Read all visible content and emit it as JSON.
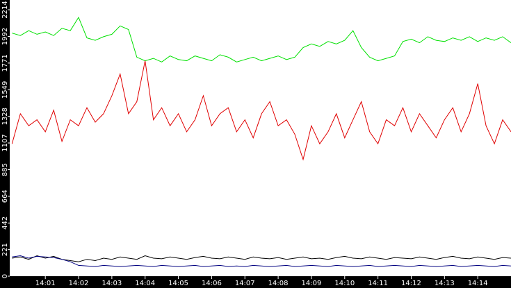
{
  "chart_data": {
    "type": "line",
    "x": [
      0,
      0.25,
      0.5,
      0.75,
      1,
      1.25,
      1.5,
      1.75,
      2,
      2.25,
      2.5,
      2.75,
      3,
      3.25,
      3.5,
      3.75,
      4,
      4.25,
      4.5,
      4.75,
      5,
      5.25,
      5.5,
      5.75,
      6,
      6.25,
      6.5,
      6.75,
      7,
      7.25,
      7.5,
      7.75,
      8,
      8.25,
      8.5,
      8.75,
      9,
      9.25,
      9.5,
      9.75,
      10,
      10.25,
      10.5,
      10.75,
      11,
      11.25,
      11.5,
      11.75,
      12,
      12.25,
      12.5,
      12.75,
      13,
      13.25,
      13.5,
      13.75,
      14,
      14.25,
      14.5,
      14.75,
      15
    ],
    "series": [
      {
        "color": "#00e000",
        "values": [
          2020,
          2000,
          2040,
          2010,
          2030,
          2000,
          2060,
          2040,
          2150,
          1980,
          1960,
          1990,
          2010,
          2080,
          2050,
          1820,
          1790,
          1810,
          1780,
          1830,
          1800,
          1790,
          1830,
          1810,
          1790,
          1840,
          1820,
          1780,
          1800,
          1820,
          1790,
          1810,
          1830,
          1800,
          1820,
          1900,
          1930,
          1910,
          1950,
          1930,
          1960,
          2040,
          1900,
          1820,
          1790,
          1810,
          1830,
          1950,
          1970,
          1940,
          1990,
          1960,
          1950,
          1980,
          1960,
          1990,
          1950,
          1980,
          1960,
          1990,
          1940
        ]
      },
      {
        "color": "#e00000",
        "values": [
          1100,
          1350,
          1250,
          1300,
          1200,
          1380,
          1120,
          1300,
          1250,
          1400,
          1280,
          1350,
          1500,
          1680,
          1350,
          1450,
          1790,
          1300,
          1400,
          1250,
          1350,
          1200,
          1300,
          1500,
          1250,
          1350,
          1400,
          1200,
          1300,
          1150,
          1350,
          1450,
          1250,
          1300,
          1180,
          970,
          1250,
          1100,
          1200,
          1350,
          1150,
          1300,
          1450,
          1200,
          1100,
          1300,
          1250,
          1400,
          1200,
          1350,
          1250,
          1150,
          1300,
          1400,
          1200,
          1350,
          1600,
          1250,
          1100,
          1300,
          1200
        ]
      },
      {
        "color": "#000000",
        "values": [
          150,
          160,
          140,
          170,
          150,
          165,
          140,
          130,
          120,
          140,
          130,
          150,
          140,
          160,
          150,
          140,
          170,
          150,
          145,
          160,
          150,
          140,
          155,
          165,
          150,
          145,
          160,
          150,
          140,
          160,
          150,
          145,
          155,
          140,
          150,
          160,
          145,
          150,
          140,
          155,
          165,
          150,
          145,
          160,
          150,
          140,
          155,
          150,
          145,
          160,
          150,
          140,
          155,
          165,
          150,
          145,
          160,
          150,
          140,
          155,
          150
        ]
      },
      {
        "color": "#000080",
        "values": [
          160,
          170,
          150,
          165,
          160,
          155,
          140,
          120,
          90,
          85,
          80,
          90,
          85,
          80,
          85,
          90,
          85,
          80,
          90,
          85,
          80,
          85,
          90,
          80,
          85,
          90,
          80,
          85,
          80,
          90,
          85,
          80,
          85,
          90,
          80,
          85,
          90,
          85,
          80,
          90,
          85,
          80,
          85,
          90,
          80,
          85,
          90,
          85,
          80,
          90,
          85,
          80,
          85,
          90,
          80,
          85,
          90,
          85,
          80,
          90,
          85
        ]
      }
    ],
    "xlim": [
      -0.07,
      15.0
    ],
    "xticks": [
      {
        "value": 1,
        "label": "14:01"
      },
      {
        "value": 2,
        "label": "14:02"
      },
      {
        "value": 3,
        "label": "14:03"
      },
      {
        "value": 4,
        "label": "14:04"
      },
      {
        "value": 5,
        "label": "14:05"
      },
      {
        "value": 6,
        "label": "14:06"
      },
      {
        "value": 7,
        "label": "14:07"
      },
      {
        "value": 8,
        "label": "14:08"
      },
      {
        "value": 9,
        "label": "14:09"
      },
      {
        "value": 10,
        "label": "14:10"
      },
      {
        "value": 11,
        "label": "14:11"
      },
      {
        "value": 12,
        "label": "14:12"
      },
      {
        "value": 13,
        "label": "14:13"
      },
      {
        "value": 14,
        "label": "14:14"
      }
    ],
    "ylim": [
      0,
      2295
    ],
    "yticks": [
      0,
      221,
      442,
      664,
      885,
      1107,
      1328,
      1549,
      1771,
      1992,
      2214
    ]
  }
}
